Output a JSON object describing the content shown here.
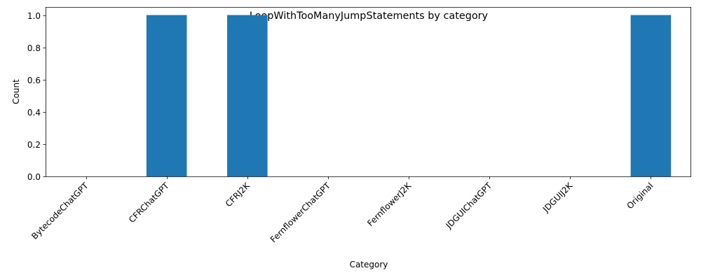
{
  "chart_data": {
    "type": "bar",
    "title": "LoopWithTooManyJumpStatements by category",
    "xlabel": "Category",
    "ylabel": "Count",
    "categories": [
      "BytecodeChatGPT",
      "CFRChatGPT",
      "CFRJ2K",
      "FernflowerChatGPT",
      "FernflowerJ2K",
      "JDGUIChatGPT",
      "JDGUIJ2K",
      "Original"
    ],
    "values": [
      0,
      1,
      1,
      0,
      0,
      0,
      0,
      1
    ],
    "ylim": [
      0,
      1.05
    ],
    "yticks": [
      0.0,
      0.2,
      0.4,
      0.6,
      0.8,
      1.0
    ],
    "ytick_labels": [
      "0.0",
      "0.2",
      "0.4",
      "0.6",
      "0.8",
      "1.0"
    ],
    "grid": false,
    "legend": "none",
    "bar_color": "#1f77b4"
  }
}
